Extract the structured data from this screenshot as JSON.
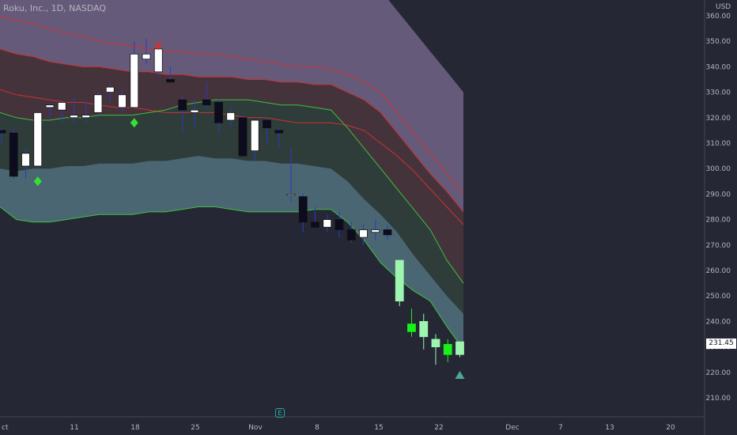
{
  "header": {
    "symbol_title": "Roku, Inc., 1D, NASDAQ",
    "currency": "USD"
  },
  "price_tag": {
    "value": "231.45"
  },
  "event_marker": {
    "glyph": "E"
  },
  "colors": {
    "background": "#252834",
    "band_upper_fill": "#655a7a",
    "band_mid_upper_fill": "#45333c",
    "band_mid_fill": "#2e3c3a",
    "band_lower_fill": "#4b6673",
    "red_line": "#d0302f",
    "green_line": "#3fbf3f",
    "candle_up": "#ffffff",
    "candle_down": "#0c0c1e",
    "candle_up_late": "#9df5b0",
    "candle_up_bright": "#18f218",
    "wick": "#2a3bbf",
    "signal_buy": "#35e035",
    "signal_sell": "#d0302f",
    "signal_up_triangle": "#4aa898",
    "axis_line": "#434651"
  },
  "chart_data": {
    "type": "candlestick",
    "ylim": [
      205,
      363
    ],
    "yticks": [
      "360.00",
      "350.00",
      "340.00",
      "330.00",
      "320.00",
      "310.00",
      "300.00",
      "290.00",
      "280.00",
      "270.00",
      "260.00",
      "250.00",
      "240.00",
      "230.00",
      "220.00",
      "210.00"
    ],
    "x_labels": [
      "ct",
      "11",
      "18",
      "25",
      "Nov",
      "8",
      "15",
      "22",
      "Dec",
      "7",
      "13",
      "20"
    ],
    "candles": [
      {
        "o": 315,
        "h": 316,
        "l": 310,
        "c": 314
      },
      {
        "o": 314,
        "h": 316,
        "l": 296,
        "c": 297
      },
      {
        "o": 301,
        "h": 308,
        "l": 296,
        "c": 306
      },
      {
        "o": 301,
        "h": 322,
        "l": 300,
        "c": 322
      },
      {
        "o": 324,
        "h": 326,
        "l": 320,
        "c": 325
      },
      {
        "o": 323,
        "h": 327,
        "l": 318,
        "c": 326
      },
      {
        "o": 320,
        "h": 328,
        "l": 318,
        "c": 321
      },
      {
        "o": 320,
        "h": 327,
        "l": 318,
        "c": 321
      },
      {
        "o": 322,
        "h": 330,
        "l": 321,
        "c": 329
      },
      {
        "o": 330,
        "h": 334,
        "l": 326,
        "c": 332
      },
      {
        "o": 324,
        "h": 331,
        "l": 322,
        "c": 329
      },
      {
        "o": 324,
        "h": 350,
        "l": 324,
        "c": 345
      },
      {
        "o": 343,
        "h": 351,
        "l": 341,
        "c": 345
      },
      {
        "o": 338,
        "h": 349,
        "l": 336,
        "c": 347
      },
      {
        "o": 335,
        "h": 340,
        "l": 334,
        "c": 334
      },
      {
        "o": 327,
        "h": 329,
        "l": 314,
        "c": 323
      },
      {
        "o": 322,
        "h": 327,
        "l": 316,
        "c": 323
      },
      {
        "o": 327,
        "h": 334,
        "l": 324,
        "c": 325
      },
      {
        "o": 326,
        "h": 327,
        "l": 314,
        "c": 318
      },
      {
        "o": 319,
        "h": 324,
        "l": 316,
        "c": 322
      },
      {
        "o": 320,
        "h": 321,
        "l": 305,
        "c": 305
      },
      {
        "o": 307,
        "h": 319,
        "l": 303,
        "c": 319
      },
      {
        "o": 319,
        "h": 320,
        "l": 310,
        "c": 316
      },
      {
        "o": 315,
        "h": 316,
        "l": 308,
        "c": 314
      },
      {
        "o": 290,
        "h": 308,
        "l": 287,
        "c": 290
      },
      {
        "o": 289,
        "h": 290,
        "l": 275,
        "c": 279
      },
      {
        "o": 279,
        "h": 285,
        "l": 277,
        "c": 277
      },
      {
        "o": 277,
        "h": 282,
        "l": 275,
        "c": 280
      },
      {
        "o": 280,
        "h": 283,
        "l": 273,
        "c": 276
      },
      {
        "o": 276,
        "h": 279,
        "l": 271,
        "c": 272
      },
      {
        "o": 273,
        "h": 278,
        "l": 270,
        "c": 276
      },
      {
        "o": 275,
        "h": 280,
        "l": 272,
        "c": 276
      },
      {
        "o": 276,
        "h": 278,
        "l": 272,
        "c": 274
      },
      {
        "o": 248,
        "h": 264,
        "l": 246,
        "c": 264
      },
      {
        "o": 236,
        "h": 245,
        "l": 234,
        "c": 239
      },
      {
        "o": 234,
        "h": 243,
        "l": 229,
        "c": 240
      },
      {
        "o": 230,
        "h": 235,
        "l": 223,
        "c": 233
      },
      {
        "o": 227,
        "h": 233,
        "l": 224,
        "c": 231
      },
      {
        "o": 227,
        "h": 232,
        "l": 226,
        "c": 232
      }
    ],
    "bands": {
      "top_red": [
        360,
        358,
        357,
        355,
        353,
        352,
        350,
        349,
        348,
        347,
        346,
        346,
        345,
        345,
        344,
        343,
        342,
        341,
        340,
        340,
        339,
        337,
        334,
        330,
        322,
        314,
        306,
        298,
        290
      ],
      "upper_red": [
        331,
        329,
        328,
        327,
        326,
        326,
        325,
        324,
        324,
        323,
        322,
        322,
        322,
        322,
        321,
        320,
        320,
        319,
        318,
        318,
        318,
        317,
        315,
        310,
        305,
        299,
        292,
        285,
        278
      ],
      "mid_red": [
        347,
        345,
        344,
        342,
        341,
        340,
        340,
        339,
        338,
        338,
        337,
        337,
        336,
        336,
        336,
        335,
        335,
        334,
        334,
        333,
        333,
        330,
        327,
        322,
        314,
        306,
        298,
        291,
        283
      ],
      "upper_green": [
        322,
        320,
        319,
        319,
        320,
        320,
        321,
        321,
        321,
        322,
        323,
        325,
        326,
        327,
        327,
        327,
        326,
        325,
        325,
        324,
        323,
        316,
        308,
        300,
        292,
        284,
        276,
        264,
        255
      ],
      "mid_green": [
        300,
        299,
        300,
        300,
        301,
        301,
        302,
        302,
        302,
        303,
        303,
        304,
        305,
        304,
        304,
        303,
        303,
        302,
        302,
        301,
        300,
        295,
        288,
        282,
        275,
        266,
        258,
        250,
        243
      ],
      "lower_green": [
        285,
        280,
        279,
        279,
        280,
        281,
        282,
        282,
        282,
        283,
        283,
        284,
        285,
        285,
        284,
        283,
        283,
        283,
        283,
        284,
        284,
        279,
        272,
        263,
        257,
        252,
        248,
        238,
        229
      ]
    },
    "signals": [
      {
        "type": "buy",
        "index": 3,
        "price": 295
      },
      {
        "type": "buy",
        "index": 11,
        "price": 318
      },
      {
        "type": "sell",
        "index": 13,
        "price": 348
      },
      {
        "type": "up",
        "index": 38,
        "price": 219
      }
    ]
  }
}
